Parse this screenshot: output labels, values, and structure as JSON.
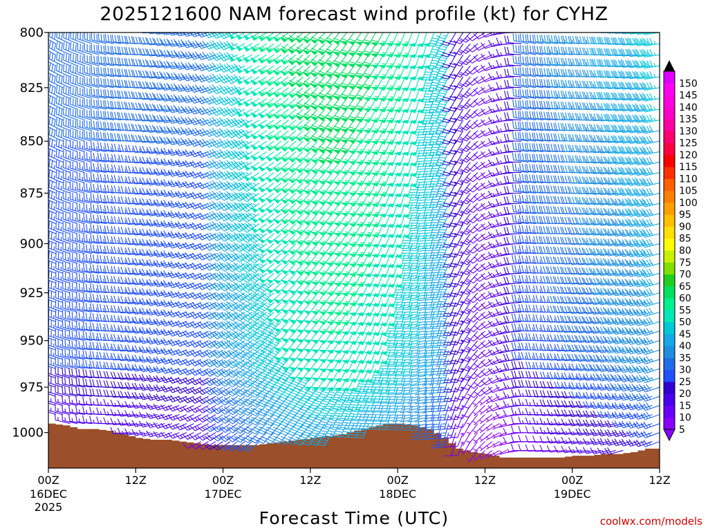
{
  "chart_data": {
    "type": "wind_barb_time_height",
    "title": "2025121600 NAM forecast wind profile (kt) for CYHZ",
    "xlabel": "Forecast Time (UTC)",
    "ylabel": "",
    "credit": "coolwx.com/models",
    "x_range_hours": [
      0,
      84
    ],
    "x_step_hours": 1,
    "y_range_hpa": [
      800,
      1020
    ],
    "y_levels_hpa": [
      800,
      805,
      810,
      815,
      820,
      825,
      830,
      835,
      840,
      845,
      850,
      855,
      860,
      865,
      870,
      875,
      880,
      885,
      890,
      895,
      900,
      905,
      910,
      915,
      920,
      925,
      930,
      935,
      940,
      945,
      950,
      955,
      960,
      965,
      970,
      975,
      980,
      985,
      990,
      995,
      1000,
      1005,
      1010,
      1015
    ],
    "y_ticks": [
      {
        "p": 800,
        "label": "800"
      },
      {
        "p": 825,
        "label": "825"
      },
      {
        "p": 850,
        "label": "850"
      },
      {
        "p": 875,
        "label": "875"
      },
      {
        "p": 900,
        "label": "900"
      },
      {
        "p": 925,
        "label": "925"
      },
      {
        "p": 950,
        "label": "950"
      },
      {
        "p": 975,
        "label": "975"
      },
      {
        "p": 1000,
        "label": "1000"
      }
    ],
    "x_ticks": [
      {
        "h": 0,
        "label": "00Z",
        "date": "16DEC",
        "year": "2025"
      },
      {
        "h": 12,
        "label": "12Z",
        "date": "",
        "year": ""
      },
      {
        "h": 24,
        "label": "00Z",
        "date": "17DEC",
        "year": ""
      },
      {
        "h": 36,
        "label": "12Z",
        "date": "",
        "year": ""
      },
      {
        "h": 48,
        "label": "00Z",
        "date": "18DEC",
        "year": ""
      },
      {
        "h": 60,
        "label": "12Z",
        "date": "",
        "year": ""
      },
      {
        "h": 72,
        "label": "00Z",
        "date": "19DEC",
        "year": ""
      },
      {
        "h": 84,
        "label": "12Z",
        "date": "",
        "year": ""
      }
    ],
    "surface_pressure_hpa": {
      "hours": [
        0,
        2,
        4,
        6,
        8,
        10,
        12,
        14,
        16,
        18,
        20,
        22,
        24,
        26,
        28,
        30,
        32,
        34,
        36,
        38,
        40,
        42,
        44,
        46,
        48,
        50,
        52,
        54,
        56,
        58,
        60,
        62,
        64,
        66,
        68,
        70,
        72,
        74,
        76,
        78,
        80,
        82,
        84
      ],
      "values": [
        995,
        996,
        998,
        998,
        999,
        1001,
        1003,
        1004,
        1004,
        1005,
        1006,
        1007,
        1007,
        1007,
        1007,
        1006,
        1005,
        1004,
        1003,
        1002,
        1001,
        999,
        997,
        995,
        995,
        996,
        998,
        1003,
        1009,
        1011,
        1012,
        1014,
        1014,
        1014,
        1014,
        1014,
        1013,
        1013,
        1012,
        1012,
        1011,
        1009,
        1009
      ],
      "color": "#9b4f2a"
    },
    "colorbar": {
      "labels": [
        5,
        10,
        15,
        20,
        25,
        30,
        35,
        40,
        45,
        50,
        55,
        60,
        65,
        70,
        75,
        80,
        85,
        90,
        95,
        100,
        105,
        110,
        115,
        120,
        125,
        130,
        135,
        140,
        145,
        150
      ],
      "colors": [
        "#8a00ff",
        "#6a00ff",
        "#4a00ee",
        "#3000d0",
        "#2050ff",
        "#1e6ce8",
        "#1e8ee0",
        "#14a8e6",
        "#00c8d8",
        "#00e8b8",
        "#00f090",
        "#00e060",
        "#20d020",
        "#80e000",
        "#c8f000",
        "#ffff00",
        "#ffe000",
        "#ffc000",
        "#ffa000",
        "#ff8000",
        "#ff6000",
        "#ff3000",
        "#ff0000",
        "#ff0040",
        "#ff0070",
        "#ff00a0",
        "#ff00c8",
        "#ff00e0",
        "#ff00f0",
        "#e000ff"
      ]
    },
    "wind_field_description": "Barbs at every forecast hour for each 5 hPa level; speeds mostly 10-60 kt, directions veer from westerly (first day) to southerly (days 2-3) and back to westerly, with a weak-wind trough near 63 h."
  }
}
